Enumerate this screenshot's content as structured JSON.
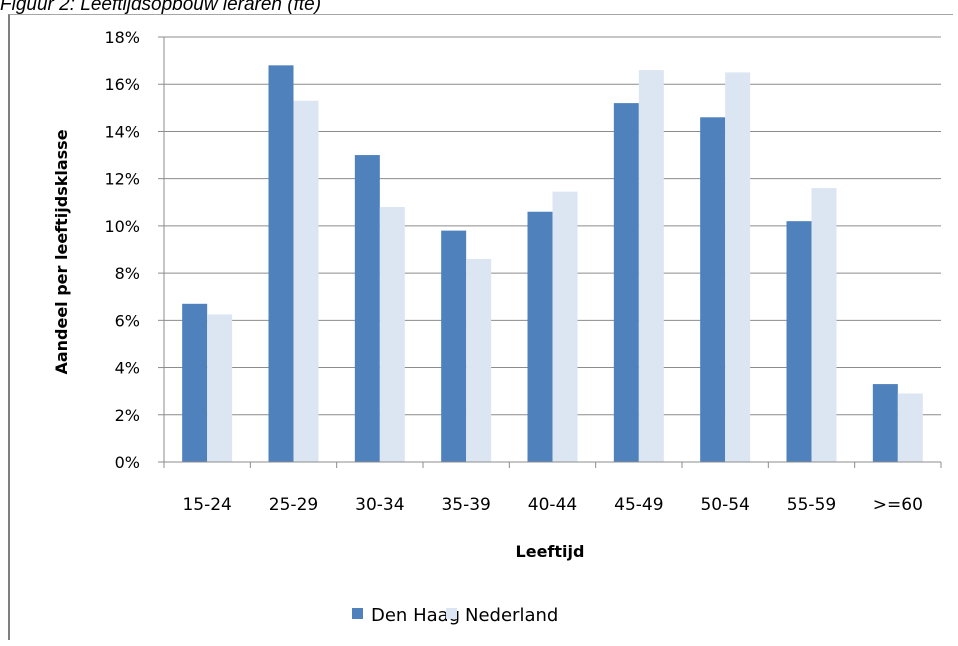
{
  "caption": "Figuur 2: Leeftijdsopbouw leraren (fte)",
  "chart_data": {
    "type": "bar",
    "title": "",
    "xlabel": "Leeftijd",
    "ylabel": "Aandeel per leeftijdsklasse",
    "ylim": [
      0,
      18
    ],
    "yticks": [
      "0%",
      "2%",
      "4%",
      "6%",
      "8%",
      "10%",
      "12%",
      "14%",
      "16%",
      "18%"
    ],
    "grid": true,
    "legend_position": "bottom",
    "categories": [
      "15-24",
      "25-29",
      "30-34",
      "35-39",
      "40-44",
      "45-49",
      "50-54",
      "55-59",
      ">=60"
    ],
    "series": [
      {
        "name": "Den Haag",
        "color": "#4f81bd",
        "values": [
          6.7,
          16.8,
          13.0,
          9.8,
          10.6,
          15.2,
          14.6,
          10.2,
          3.3
        ]
      },
      {
        "name": "Nederland",
        "color": "#dce6f2",
        "values": [
          6.25,
          15.3,
          10.8,
          8.6,
          11.45,
          16.6,
          16.5,
          11.6,
          2.9
        ]
      }
    ]
  }
}
